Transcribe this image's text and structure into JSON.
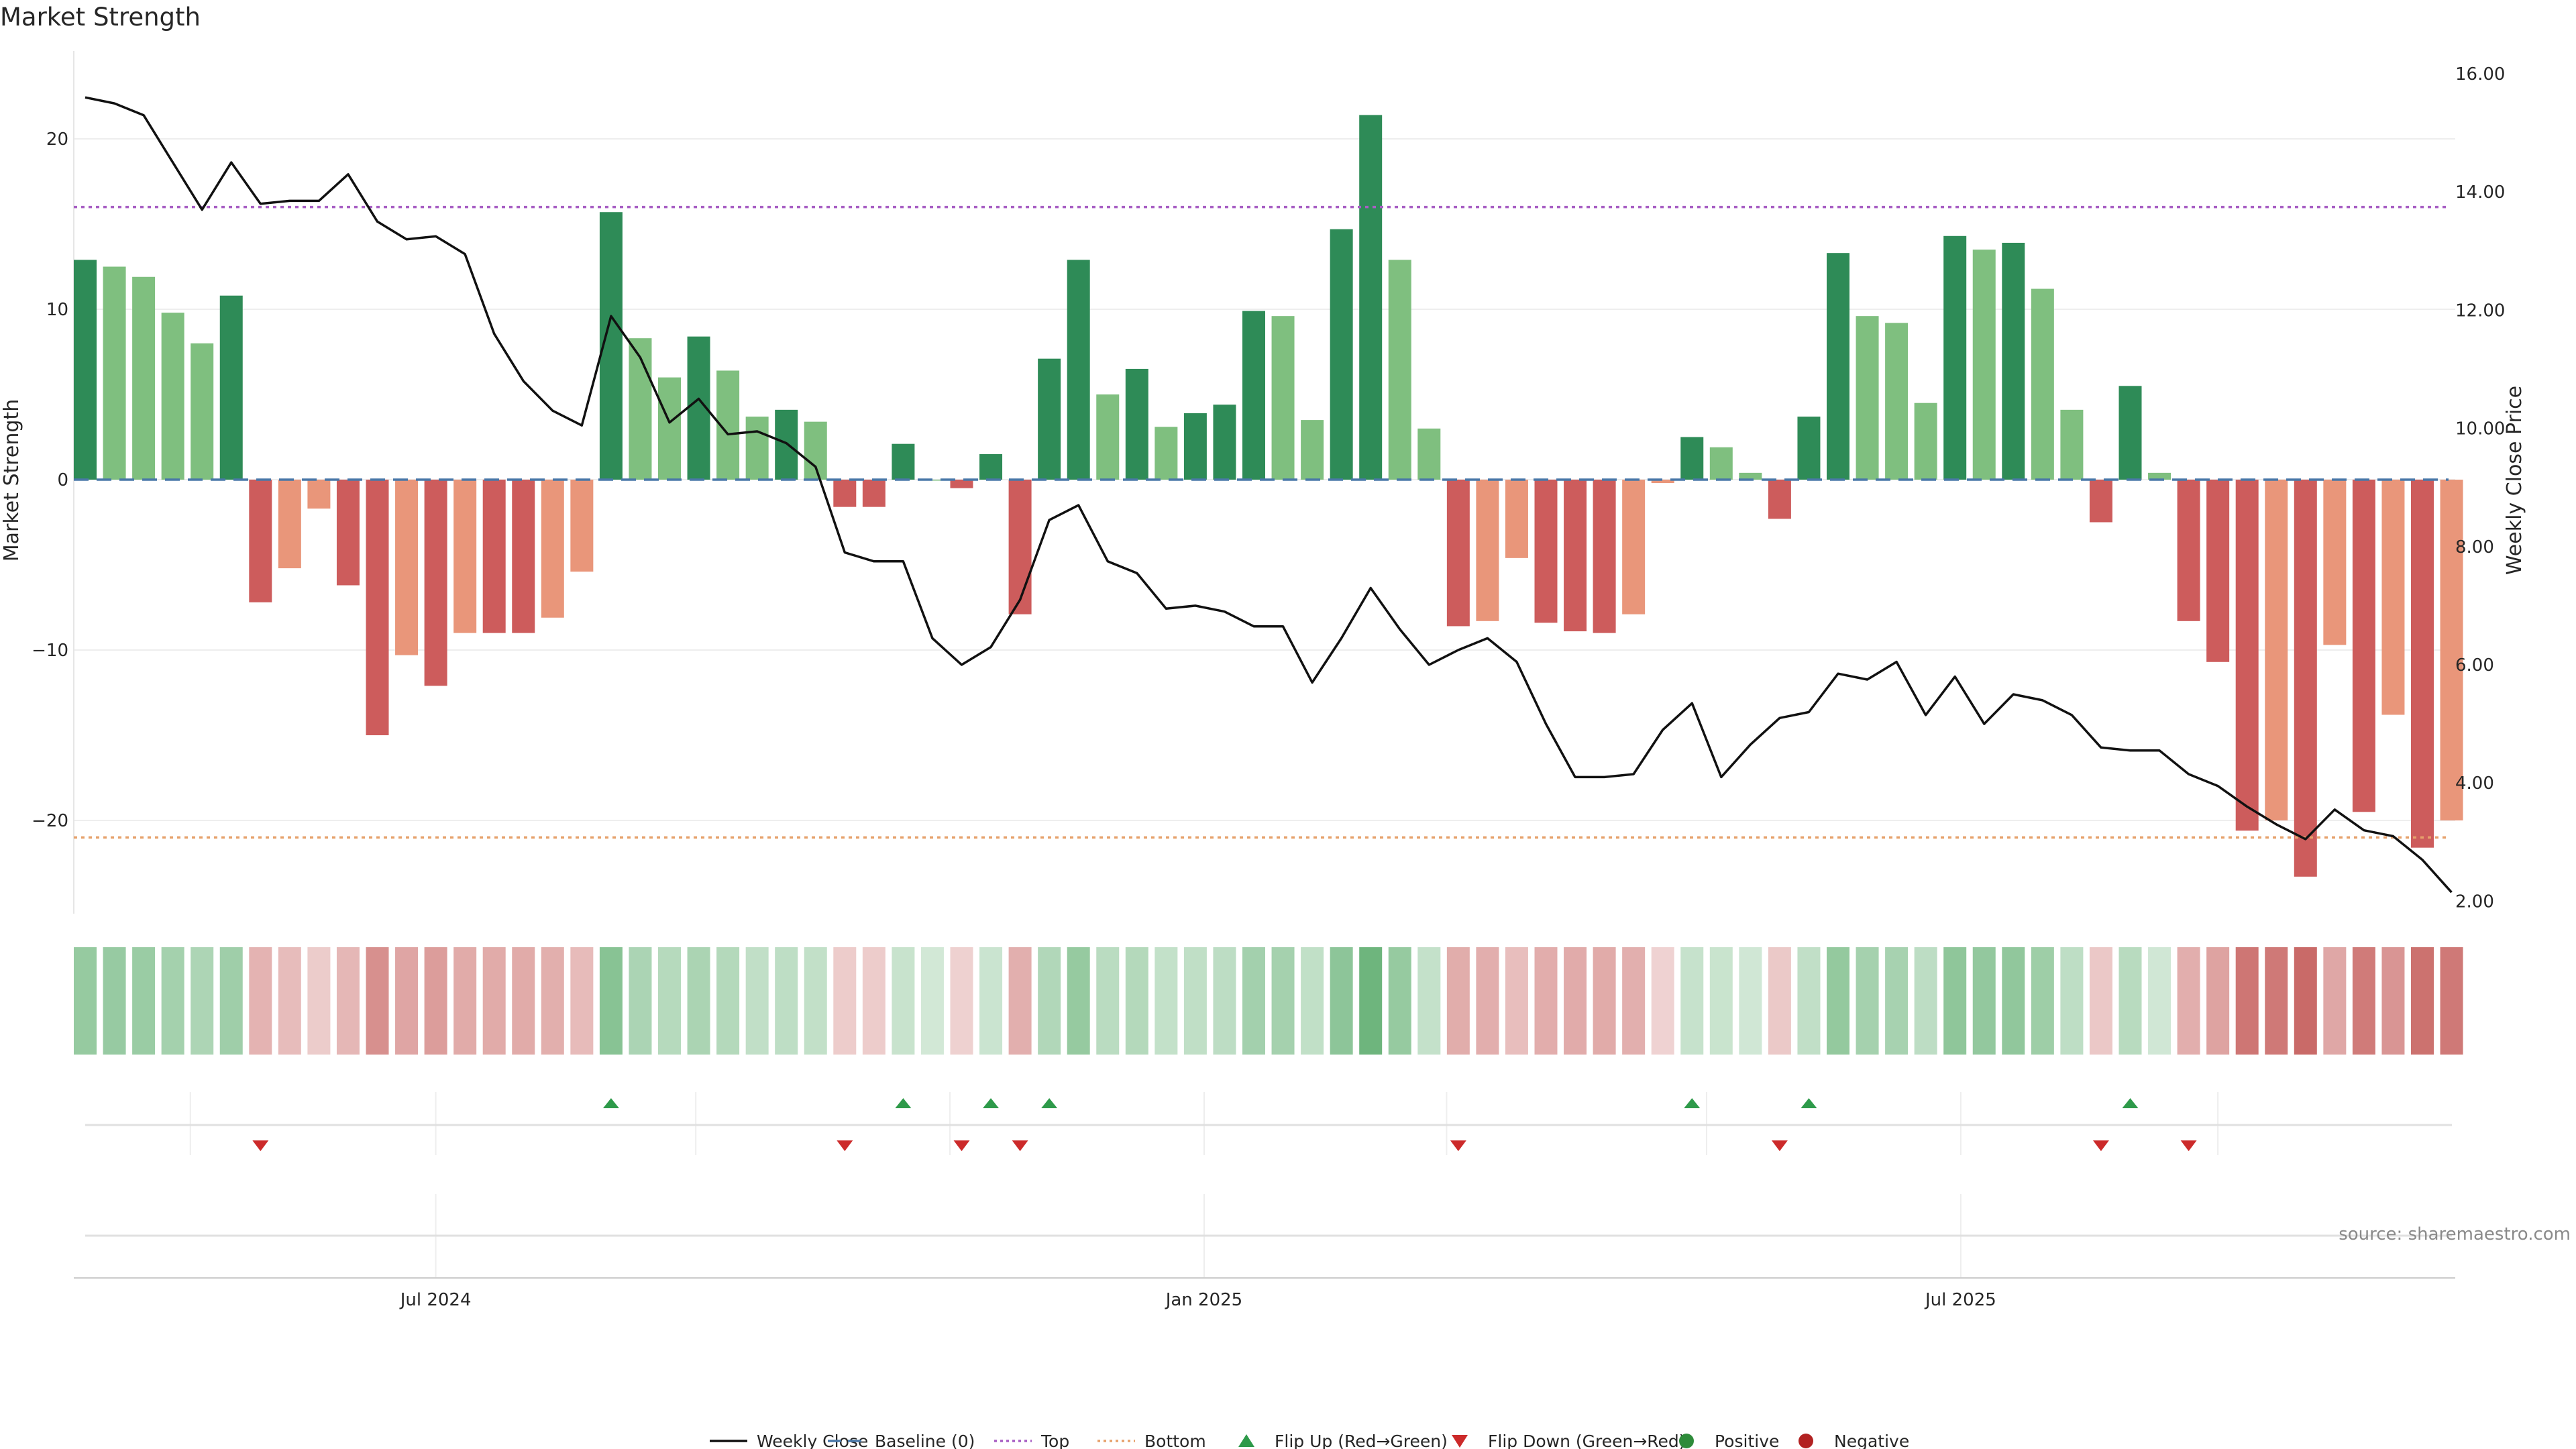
{
  "chart_data": {
    "type": "bar",
    "title": "Market Strength",
    "ylabel": "Market Strength",
    "y2label": "Weekly Close Price",
    "ylim": [
      -25,
      26
    ],
    "y2lim": [
      2,
      16.0
    ],
    "yticks": [
      20,
      10,
      0,
      -10,
      -20
    ],
    "y2ticks": [
      "16.00",
      "14.00",
      "12.00",
      "10.00",
      "8.00",
      "6.00",
      "4.00",
      "2.00"
    ],
    "top_level": 16,
    "bottom_level": -21,
    "x_ticks": [
      {
        "label": "Jul 2024",
        "index": 12
      },
      {
        "label": "Jan 2025",
        "index": 38.3
      },
      {
        "label": "Jul 2025",
        "index": 64.2
      }
    ],
    "week_dividers": [
      3.6,
      12,
      20.9,
      29.6,
      38.3,
      46.6,
      55.5,
      64.2,
      73
    ],
    "source": "source: sharemaestro.com",
    "strength": [
      12.9,
      12.5,
      11.9,
      9.8,
      8.0,
      10.8,
      -7.2,
      -5.2,
      -1.7,
      -6.2,
      -15.0,
      -10.3,
      -12.1,
      -9.0,
      -9.0,
      -9.0,
      -8.1,
      -5.4,
      15.7,
      8.3,
      6.0,
      8.4,
      6.4,
      3.7,
      4.1,
      3.4,
      -1.6,
      -1.6,
      2.1,
      0,
      -0.5,
      1.5,
      -7.9,
      7.1,
      12.9,
      5.0,
      6.5,
      3.1,
      3.9,
      4.4,
      9.9,
      9.6,
      3.5,
      14.7,
      21.4,
      12.9,
      3.0,
      -8.6,
      -8.3,
      -4.6,
      -8.4,
      -8.9,
      -9.0,
      -7.9,
      -0.2,
      2.5,
      1.9,
      0.4,
      -2.3,
      3.7,
      13.3,
      9.6,
      9.2,
      4.5,
      14.3,
      13.5,
      13.9,
      11.2,
      4.1,
      -2.5,
      5.5,
      0.4,
      -8.3,
      -10.7,
      -20.6,
      -20.0,
      -23.3,
      -9.7,
      -19.5,
      -13.8,
      -21.6,
      -20.0
    ],
    "close": [
      15.6,
      15.5,
      15.3,
      14.5,
      13.7,
      14.5,
      13.8,
      13.85,
      13.85,
      14.3,
      13.5,
      13.2,
      13.25,
      12.95,
      11.6,
      10.8,
      10.3,
      10.05,
      11.9,
      11.2,
      10.1,
      10.5,
      9.9,
      9.95,
      9.75,
      9.35,
      7.9,
      7.75,
      7.75,
      6.45,
      6.0,
      6.3,
      7.1,
      8.45,
      8.7,
      7.75,
      7.55,
      6.95,
      7.0,
      6.9,
      6.65,
      6.65,
      5.7,
      6.45,
      7.3,
      6.6,
      6.0,
      6.25,
      6.45,
      6.05,
      5.0,
      4.1,
      4.1,
      4.15,
      4.9,
      5.35,
      4.1,
      4.65,
      5.1,
      5.2,
      5.85,
      5.75,
      6.05,
      5.15,
      5.8,
      5.0,
      5.5,
      5.4,
      5.15,
      4.6,
      4.55,
      4.55,
      4.15,
      3.95,
      3.6,
      3.3,
      3.05,
      3.55,
      3.2,
      3.1,
      2.7,
      2.15
    ],
    "flip_up_weeks": [
      18,
      28,
      31,
      33,
      55,
      59,
      70
    ],
    "flip_down_weeks": [
      6,
      26,
      30,
      32,
      47,
      58,
      69,
      72
    ],
    "legend": [
      {
        "label": "Weekly Close",
        "kind": "line",
        "color": "#111111"
      },
      {
        "label": "Baseline (0)",
        "kind": "dash",
        "color": "#4a78a8"
      },
      {
        "label": "Top",
        "kind": "dotline",
        "color": "#a85fc4"
      },
      {
        "label": "Bottom",
        "kind": "dotline",
        "color": "#e6a16b"
      },
      {
        "label": "Flip Up (Red→Green)",
        "kind": "tri-up",
        "color": "#2e9a4a"
      },
      {
        "label": "Flip Down (Green→Red)",
        "kind": "tri-down",
        "color": "#cc2a2a"
      },
      {
        "label": "Positive",
        "kind": "dot",
        "color": "#2e8b3a"
      },
      {
        "label": "Negative",
        "kind": "dot",
        "color": "#b22222"
      }
    ],
    "colors": {
      "pos_strong": "#2e8b57",
      "pos_weak": "#7fbf7f",
      "neg_strong": "#cd5c5c",
      "neg_weak": "#e9967a",
      "close_line": "#111111",
      "baseline": "#4a78a8",
      "top": "#a85fc4",
      "bottom": "#e6a16b"
    }
  }
}
